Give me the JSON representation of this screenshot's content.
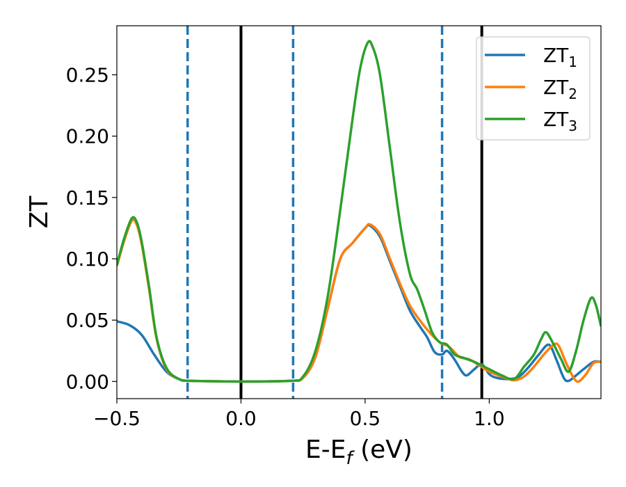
{
  "chart_data": {
    "type": "line",
    "xlabel": "E-E",
    "xlabel_sub": "f",
    "xlabel_unit": " (eV)",
    "ylabel": "ZT",
    "xlim": [
      -0.5,
      1.45
    ],
    "ylim": [
      -0.014,
      0.29
    ],
    "xticks": [
      -0.5,
      0.0,
      0.5,
      1.0
    ],
    "xtick_labels": [
      "−0.5",
      "0.0",
      "0.5",
      "1.0"
    ],
    "yticks": [
      0.0,
      0.05,
      0.1,
      0.15,
      0.2,
      0.25
    ],
    "ytick_labels": [
      "0.00",
      "0.05",
      "0.10",
      "0.15",
      "0.20",
      "0.25"
    ],
    "grid": false,
    "legend_position": "top-right",
    "vertical_lines": [
      {
        "x": -0.215,
        "style": "dashed",
        "color": "#1f77b4"
      },
      {
        "x": 0.0,
        "style": "solid",
        "color": "#000000"
      },
      {
        "x": 0.21,
        "style": "dashed",
        "color": "#1f77b4"
      },
      {
        "x": 0.81,
        "style": "dashed",
        "color": "#1f77b4"
      },
      {
        "x": 0.97,
        "style": "solid",
        "color": "#000000"
      }
    ],
    "series": [
      {
        "name": "ZT",
        "name_sub": "1",
        "color": "#1f77b4",
        "points": [
          [
            -0.5,
            0.049
          ],
          [
            -0.45,
            0.046
          ],
          [
            -0.4,
            0.038
          ],
          [
            -0.35,
            0.022
          ],
          [
            -0.3,
            0.008
          ],
          [
            -0.25,
            0.002
          ],
          [
            -0.2,
            0.0005
          ],
          [
            0.0,
            0.0
          ],
          [
            0.2,
            0.0005
          ],
          [
            0.25,
            0.003
          ],
          [
            0.3,
            0.02
          ],
          [
            0.35,
            0.06
          ],
          [
            0.4,
            0.1
          ],
          [
            0.45,
            0.113
          ],
          [
            0.5,
            0.125
          ],
          [
            0.52,
            0.127
          ],
          [
            0.56,
            0.118
          ],
          [
            0.6,
            0.098
          ],
          [
            0.64,
            0.078
          ],
          [
            0.68,
            0.058
          ],
          [
            0.72,
            0.045
          ],
          [
            0.75,
            0.036
          ],
          [
            0.78,
            0.024
          ],
          [
            0.81,
            0.022
          ],
          [
            0.83,
            0.025
          ],
          [
            0.86,
            0.018
          ],
          [
            0.89,
            0.008
          ],
          [
            0.91,
            0.005
          ],
          [
            0.94,
            0.01
          ],
          [
            0.97,
            0.014
          ],
          [
            1.0,
            0.006
          ],
          [
            1.03,
            0.003
          ],
          [
            1.08,
            0.002
          ],
          [
            1.12,
            0.004
          ],
          [
            1.16,
            0.012
          ],
          [
            1.2,
            0.022
          ],
          [
            1.24,
            0.03
          ],
          [
            1.27,
            0.018
          ],
          [
            1.3,
            0.003
          ],
          [
            1.32,
            0.0005
          ],
          [
            1.35,
            0.005
          ],
          [
            1.38,
            0.01
          ],
          [
            1.42,
            0.016
          ],
          [
            1.45,
            0.016
          ]
        ]
      },
      {
        "name": "ZT",
        "name_sub": "2",
        "color": "#ff7f0e",
        "points": [
          [
            -0.5,
            0.094
          ],
          [
            -0.47,
            0.115
          ],
          [
            -0.44,
            0.131
          ],
          [
            -0.42,
            0.128
          ],
          [
            -0.4,
            0.112
          ],
          [
            -0.37,
            0.075
          ],
          [
            -0.34,
            0.035
          ],
          [
            -0.3,
            0.01
          ],
          [
            -0.25,
            0.002
          ],
          [
            -0.2,
            0.0005
          ],
          [
            0.0,
            0.0
          ],
          [
            0.2,
            0.0005
          ],
          [
            0.25,
            0.003
          ],
          [
            0.3,
            0.02
          ],
          [
            0.35,
            0.06
          ],
          [
            0.4,
            0.1
          ],
          [
            0.45,
            0.113
          ],
          [
            0.5,
            0.125
          ],
          [
            0.52,
            0.128
          ],
          [
            0.56,
            0.12
          ],
          [
            0.6,
            0.1
          ],
          [
            0.64,
            0.08
          ],
          [
            0.68,
            0.062
          ],
          [
            0.72,
            0.05
          ],
          [
            0.76,
            0.04
          ],
          [
            0.8,
            0.032
          ],
          [
            0.84,
            0.028
          ],
          [
            0.88,
            0.02
          ],
          [
            0.92,
            0.018
          ],
          [
            0.96,
            0.013
          ],
          [
            1.0,
            0.008
          ],
          [
            1.05,
            0.004
          ],
          [
            1.1,
            0.001
          ],
          [
            1.14,
            0.004
          ],
          [
            1.18,
            0.012
          ],
          [
            1.22,
            0.022
          ],
          [
            1.26,
            0.03
          ],
          [
            1.28,
            0.029
          ],
          [
            1.31,
            0.015
          ],
          [
            1.34,
            0.003
          ],
          [
            1.36,
            0.0
          ],
          [
            1.39,
            0.006
          ],
          [
            1.42,
            0.015
          ],
          [
            1.45,
            0.016
          ]
        ]
      },
      {
        "name": "ZT",
        "name_sub": "3",
        "color": "#2ca02c",
        "points": [
          [
            -0.5,
            0.095
          ],
          [
            -0.47,
            0.117
          ],
          [
            -0.44,
            0.133
          ],
          [
            -0.42,
            0.13
          ],
          [
            -0.4,
            0.114
          ],
          [
            -0.37,
            0.077
          ],
          [
            -0.34,
            0.036
          ],
          [
            -0.3,
            0.011
          ],
          [
            -0.25,
            0.002
          ],
          [
            -0.2,
            0.0005
          ],
          [
            0.0,
            0.0
          ],
          [
            0.2,
            0.0005
          ],
          [
            0.25,
            0.004
          ],
          [
            0.3,
            0.025
          ],
          [
            0.35,
            0.07
          ],
          [
            0.4,
            0.14
          ],
          [
            0.45,
            0.215
          ],
          [
            0.48,
            0.255
          ],
          [
            0.51,
            0.276
          ],
          [
            0.53,
            0.273
          ],
          [
            0.56,
            0.25
          ],
          [
            0.6,
            0.19
          ],
          [
            0.64,
            0.13
          ],
          [
            0.68,
            0.088
          ],
          [
            0.71,
            0.075
          ],
          [
            0.74,
            0.058
          ],
          [
            0.77,
            0.04
          ],
          [
            0.8,
            0.032
          ],
          [
            0.83,
            0.03
          ],
          [
            0.86,
            0.022
          ],
          [
            0.9,
            0.019
          ],
          [
            0.94,
            0.016
          ],
          [
            0.97,
            0.013
          ],
          [
            1.0,
            0.01
          ],
          [
            1.05,
            0.005
          ],
          [
            1.1,
            0.002
          ],
          [
            1.14,
            0.012
          ],
          [
            1.18,
            0.022
          ],
          [
            1.21,
            0.035
          ],
          [
            1.23,
            0.04
          ],
          [
            1.26,
            0.03
          ],
          [
            1.29,
            0.018
          ],
          [
            1.32,
            0.008
          ],
          [
            1.35,
            0.025
          ],
          [
            1.38,
            0.05
          ],
          [
            1.41,
            0.068
          ],
          [
            1.43,
            0.062
          ],
          [
            1.45,
            0.045
          ]
        ]
      }
    ]
  }
}
